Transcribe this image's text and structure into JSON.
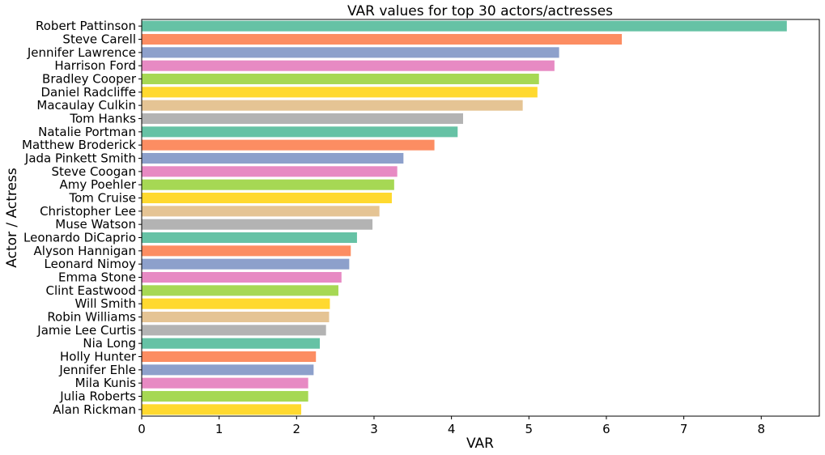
{
  "chart_data": {
    "type": "bar",
    "orientation": "horizontal",
    "title": "VAR values for top 30 actors/actresses",
    "xlabel": "VAR",
    "ylabel": "Actor / Actress",
    "xlim": [
      0,
      8.75
    ],
    "x_ticks": [
      0,
      1,
      2,
      3,
      4,
      5,
      6,
      7,
      8
    ],
    "grid": false,
    "categories": [
      "Robert Pattinson",
      "Steve Carell",
      "Jennifer Lawrence",
      "Harrison Ford",
      "Bradley Cooper",
      "Daniel Radcliffe",
      "Macaulay Culkin",
      "Tom Hanks",
      "Natalie Portman",
      "Matthew Broderick",
      "Jada Pinkett Smith",
      "Steve Coogan",
      "Amy Poehler",
      "Tom Cruise",
      "Christopher Lee",
      "Muse Watson",
      "Leonardo DiCaprio",
      "Alyson Hannigan",
      "Leonard Nimoy",
      "Emma Stone",
      "Clint Eastwood",
      "Will Smith",
      "Robin Williams",
      "Jamie Lee Curtis",
      "Nia Long",
      "Holly Hunter",
      "Jennifer Ehle",
      "Mila Kunis",
      "Julia Roberts",
      "Alan Rickman"
    ],
    "values": [
      8.33,
      6.2,
      5.39,
      5.33,
      5.13,
      5.11,
      4.92,
      4.15,
      4.08,
      3.78,
      3.38,
      3.3,
      3.26,
      3.23,
      3.07,
      2.98,
      2.78,
      2.7,
      2.68,
      2.58,
      2.54,
      2.43,
      2.42,
      2.38,
      2.3,
      2.25,
      2.22,
      2.15,
      2.15,
      2.06
    ],
    "palette": [
      "#66c2a5",
      "#fc8d62",
      "#8da0cb",
      "#e78ac3",
      "#a6d854",
      "#ffd92f",
      "#e5c494",
      "#b3b3b3"
    ]
  }
}
